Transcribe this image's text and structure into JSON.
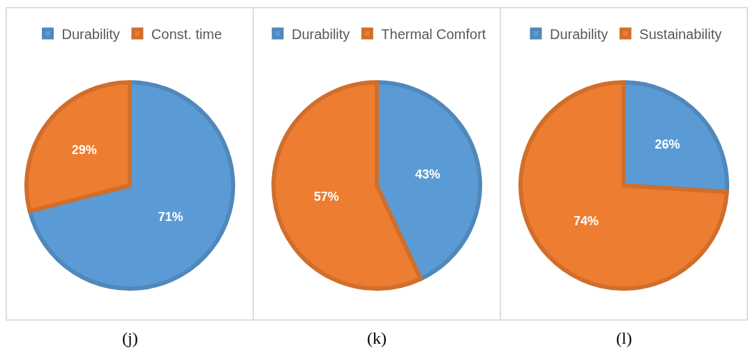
{
  "chart_data": [
    {
      "type": "pie",
      "categories": [
        "Durability",
        "Const. time"
      ],
      "values": [
        71,
        29
      ],
      "colors": [
        "#5b9bd5",
        "#ed7d31"
      ],
      "value_labels": [
        "71%",
        "29%"
      ],
      "legend": "top",
      "annotations": [
        "(j)"
      ]
    },
    {
      "type": "pie",
      "categories": [
        "Durability",
        "Thermal Comfort"
      ],
      "values": [
        43,
        57
      ],
      "colors": [
        "#5b9bd5",
        "#ed7d31"
      ],
      "value_labels": [
        "43%",
        "57%"
      ],
      "legend": "top",
      "annotations": [
        "(k)"
      ]
    },
    {
      "type": "pie",
      "categories": [
        "Durability",
        "Sustainability"
      ],
      "values": [
        26,
        74
      ],
      "colors": [
        "#5b9bd5",
        "#ed7d31"
      ],
      "value_labels": [
        "26%",
        "74%"
      ],
      "legend": "top",
      "annotations": [
        "(l)"
      ]
    }
  ]
}
